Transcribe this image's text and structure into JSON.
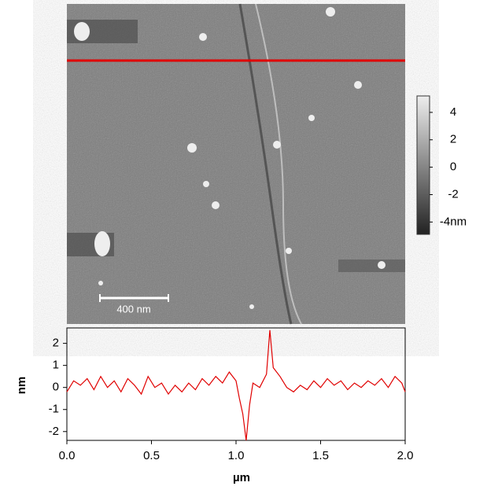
{
  "chart_data": [
    {
      "type": "image",
      "scale_bar": "400 nm",
      "clim": [
        -4.9,
        5.2
      ],
      "cticks": [
        4,
        2,
        0,
        -2,
        {
          "value": -4,
          "label": "-4nm"
        }
      ]
    },
    {
      "type": "line",
      "xlabel": "µm",
      "ylabel": "nm",
      "color": "#e00000",
      "xlim": [
        0,
        2
      ],
      "ylim": [
        -2.4,
        2.7
      ],
      "xticks": [
        {
          "value": 0,
          "label": "0.0"
        },
        {
          "value": 0.5,
          "label": "0.5"
        },
        {
          "value": 1,
          "label": "1.0"
        },
        {
          "value": 1.5,
          "label": "1.5"
        },
        {
          "value": 2,
          "label": "2.0"
        }
      ],
      "yticks": [
        -2,
        -1,
        0,
        1,
        2
      ],
      "x": [
        0,
        0.04,
        0.08,
        0.12,
        0.16,
        0.2,
        0.24,
        0.28,
        0.32,
        0.36,
        0.4,
        0.44,
        0.48,
        0.52,
        0.56,
        0.6,
        0.64,
        0.68,
        0.72,
        0.76,
        0.8,
        0.84,
        0.88,
        0.92,
        0.96,
        1.0,
        1.02,
        1.04,
        1.06,
        1.08,
        1.1,
        1.14,
        1.18,
        1.2,
        1.22,
        1.26,
        1.3,
        1.34,
        1.38,
        1.42,
        1.46,
        1.5,
        1.54,
        1.58,
        1.62,
        1.66,
        1.7,
        1.74,
        1.78,
        1.82,
        1.86,
        1.9,
        1.94,
        1.98,
        2.0
      ],
      "values": [
        -0.2,
        0.3,
        0.1,
        0.4,
        -0.1,
        0.5,
        0.0,
        0.3,
        -0.2,
        0.4,
        0.1,
        -0.3,
        0.5,
        0.0,
        0.2,
        -0.3,
        0.1,
        -0.2,
        0.2,
        -0.1,
        0.4,
        0.1,
        0.5,
        0.2,
        0.7,
        0.3,
        -0.5,
        -1.2,
        -2.4,
        -0.8,
        0.2,
        0.0,
        0.6,
        2.6,
        0.9,
        0.5,
        0.0,
        -0.2,
        0.1,
        -0.1,
        0.3,
        0.0,
        0.4,
        0.1,
        0.3,
        -0.1,
        0.2,
        0.0,
        0.3,
        0.1,
        0.4,
        0.0,
        0.5,
        0.2,
        -0.2
      ]
    }
  ]
}
